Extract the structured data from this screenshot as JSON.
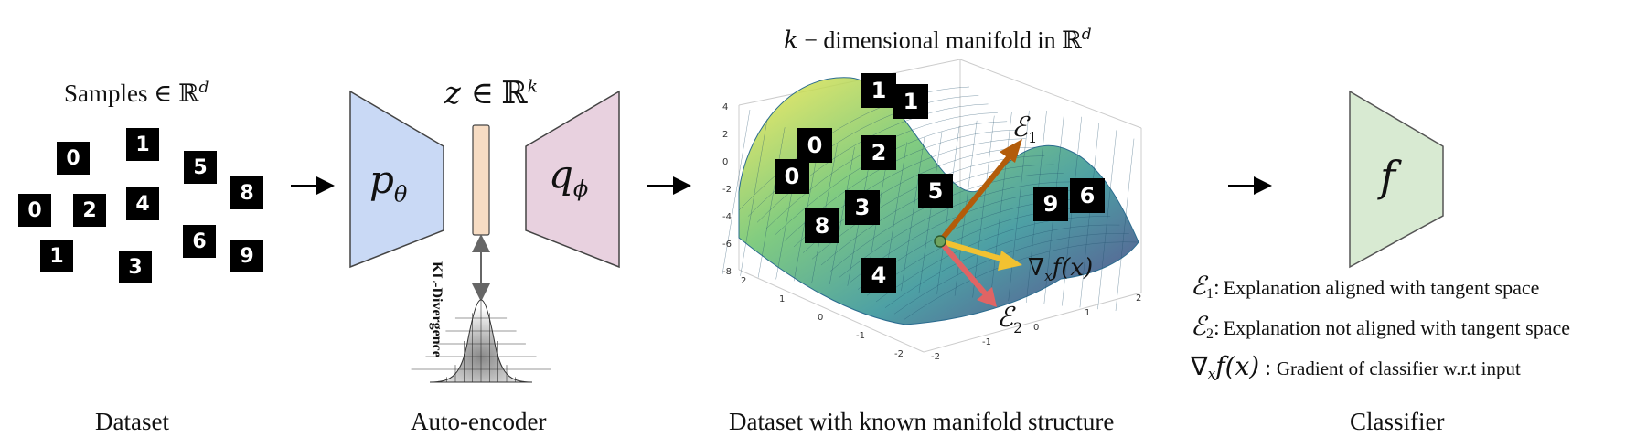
{
  "dataset": {
    "samples_label": "Samples",
    "samples_math": "∈ ℝ",
    "samples_sup": "d",
    "digits": [
      "0",
      "1",
      "5",
      "8",
      "0",
      "2",
      "4",
      "6",
      "9",
      "1",
      "3"
    ],
    "caption": "Dataset"
  },
  "autoencoder": {
    "encoder": "p",
    "encoder_sub": "θ",
    "latent": "z",
    "latent_math": "∈ ℝ",
    "latent_sup": "k",
    "decoder": "q",
    "decoder_sub": "ϕ",
    "kl_label": "KL-Divergence",
    "caption": "Auto-encoder",
    "colors": {
      "encoder": "#c9d9f5",
      "decoder": "#e8d1df",
      "latent": "#f7dcc3"
    }
  },
  "manifold": {
    "title_k": "k",
    "title_rest": " − dimensional manifold in ℝ",
    "title_sup": "d",
    "digits": [
      "1",
      "1",
      "0",
      "2",
      "0",
      "5",
      "3",
      "8",
      "4",
      "9",
      "6"
    ],
    "yticks": [
      "4",
      "2",
      "0",
      "-2",
      "-4",
      "-6",
      "-8"
    ],
    "xticks": [
      "2",
      "1",
      "0",
      "-1",
      "-2"
    ],
    "zticks": [
      "-2",
      "-1",
      "0",
      "1",
      "2"
    ],
    "e1": "ℰ",
    "e1_sub": "1",
    "e2": "ℰ",
    "e2_sub": "2",
    "grad": "∇",
    "grad_sub": "x",
    "grad_rest": "f(x)",
    "caption": "Dataset with known manifold structure",
    "colors": {
      "e1": "#b35c0a",
      "e2": "#e06464",
      "grad": "#f2c231",
      "point": "#6fa35f"
    }
  },
  "classifier": {
    "symbol": "f",
    "caption": "Classifier",
    "color": "#d8ead2"
  },
  "legend": [
    {
      "sym": "ℰ",
      "sub": "1",
      "text": "Explanation aligned with tangent space"
    },
    {
      "sym": "ℰ",
      "sub": "2",
      "text": "Explanation not aligned with tangent space"
    },
    {
      "sym": "∇",
      "sub": "x",
      "rest": "f(x)",
      "text": "Gradient of classifier w.r.t input"
    }
  ]
}
